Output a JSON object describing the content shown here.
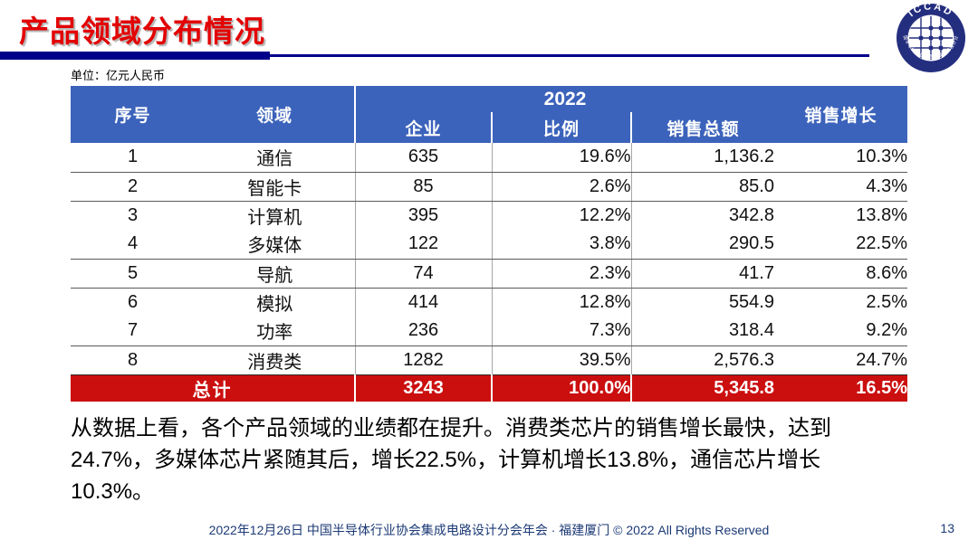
{
  "slide": {
    "title": "产品领域分布情况",
    "unit_label": "单位：亿元人民币",
    "logo": {
      "top_text": "ICCAD",
      "bottom_text": "中国半导体行业协会集成电路设计分会"
    },
    "table": {
      "header": {
        "no": "序号",
        "domain": "领域",
        "year": "2022",
        "companies": "企业",
        "ratio": "比例",
        "sales": "销售总额",
        "growth": "销售增长"
      },
      "rows": [
        {
          "no": "1",
          "domain": "通信",
          "companies": "635",
          "ratio": "19.6%",
          "sales": "1,136.2",
          "growth": "10.3%"
        },
        {
          "no": "2",
          "domain": "智能卡",
          "companies": "85",
          "ratio": "2.6%",
          "sales": "85.0",
          "growth": "4.3%"
        },
        {
          "no": "3",
          "domain": "计算机",
          "companies": "395",
          "ratio": "12.2%",
          "sales": "342.8",
          "growth": "13.8%"
        },
        {
          "no": "4",
          "domain": "多媒体",
          "companies": "122",
          "ratio": "3.8%",
          "sales": "290.5",
          "growth": "22.5%"
        },
        {
          "no": "5",
          "domain": "导航",
          "companies": "74",
          "ratio": "2.3%",
          "sales": "41.7",
          "growth": "8.6%"
        },
        {
          "no": "6",
          "domain": "模拟",
          "companies": "414",
          "ratio": "12.8%",
          "sales": "554.9",
          "growth": "2.5%"
        },
        {
          "no": "7",
          "domain": "功率",
          "companies": "236",
          "ratio": "7.3%",
          "sales": "318.4",
          "growth": "9.2%"
        },
        {
          "no": "8",
          "domain": "消费类",
          "companies": "1282",
          "ratio": "39.5%",
          "sales": "2,576.3",
          "growth": "24.7%"
        }
      ],
      "total": {
        "label": "总计",
        "companies": "3243",
        "ratio": "100.0%",
        "sales": "5,345.8",
        "growth": "16.5%"
      }
    },
    "paragraph_lines": [
      "从数据上看，各个产品领域的业绩都在提升。消费类芯片的销售增长最快，达到",
      "24.7%，多媒体芯片紧随其后，增长22.5%，计算机增长13.8%，通信芯片增长",
      "10.3%。"
    ],
    "footer": {
      "text": "2022年12月26日 中国半导体行业协会集成电路设计分会年会 · 福建厦门 © 2022 All Rights Reserved",
      "page": "13"
    },
    "colors": {
      "header_blue": "#3c63bb",
      "total_red": "#cb0f0f",
      "title_red": "#e30000",
      "divider_navy": "#00008b",
      "footer_navy": "#1c3a76"
    }
  }
}
